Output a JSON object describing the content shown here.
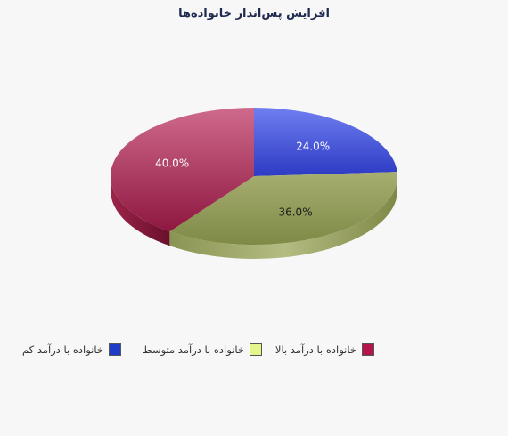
{
  "chart_data": {
    "type": "pie",
    "title": "افزایش پس‌انداز  خانواده‌ها",
    "slices": [
      {
        "name": "خانواده با درآمد کم",
        "value": 24.0,
        "label": "24.0%",
        "color": "#3a45d4"
      },
      {
        "name": "خانواده با درآمد متوسط",
        "value": 36.0,
        "label": "36.0%",
        "color": "#8f9a4e"
      },
      {
        "name": "خانواده با درآمد بالا",
        "value": 40.0,
        "label": "40.0%",
        "color": "#b4264f"
      }
    ],
    "legend": {
      "position": "bottom",
      "swatch_colors": [
        "#1f3cc8",
        "#e6f48c",
        "#b3154a"
      ]
    },
    "style": "3d"
  }
}
